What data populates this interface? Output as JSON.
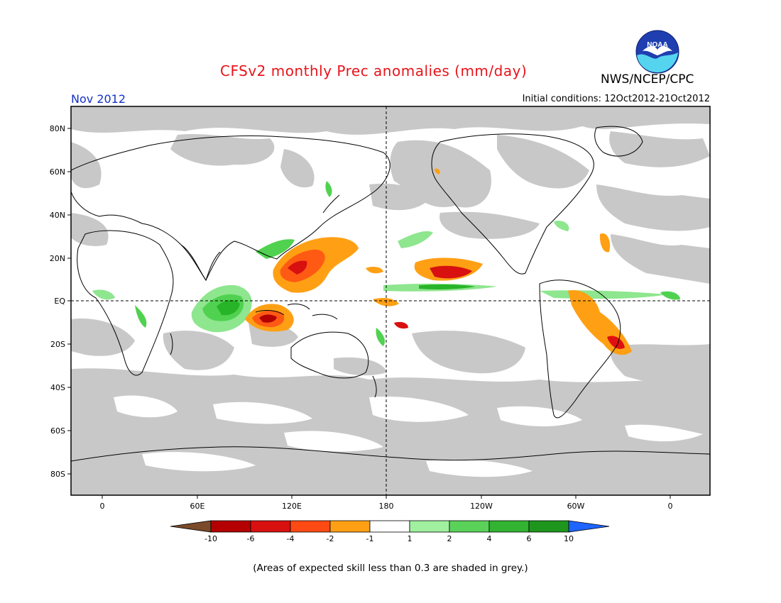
{
  "title": "CFSv2 monthly Prec anomalies (mm/day)",
  "agency": "NWS/NCEP/CPC",
  "logo_text": "NOAA",
  "valid_month": "Nov 2012",
  "initial_conditions": "Initial conditions: 12Oct2012-21Oct2012",
  "footnote": "(Areas of expected skill less than 0.3 are shaded in grey.)",
  "colors": {
    "grey_low_skill": "#c8c8c8",
    "ocean_land_background": "#ffffff",
    "dry": [
      "#7a4a2a",
      "#b40000",
      "#e01010",
      "#ff5a14",
      "#ffa014"
    ],
    "wet": [
      "#8ee68e",
      "#50d250",
      "#28b428",
      "#149614",
      "#1e64ff"
    ]
  },
  "map": {
    "projection": "cylindrical equidistant, centered 180",
    "lat_labels": [
      "80N",
      "60N",
      "40N",
      "20N",
      "EQ",
      "20S",
      "40S",
      "60S",
      "80S"
    ],
    "lon_labels": [
      "0",
      "60E",
      "120E",
      "180",
      "120W",
      "60W",
      "0"
    ],
    "reference_lines": [
      "equator",
      "dateline"
    ]
  },
  "legend": {
    "labels": [
      "-10",
      "-6",
      "-4",
      "-2",
      "-1",
      "1",
      "2",
      "4",
      "6",
      "10"
    ],
    "bins": [
      {
        "color": "#7a4a2a",
        "range": "< -10"
      },
      {
        "color": "#b40000",
        "range": "-10 to -6"
      },
      {
        "color": "#d81010",
        "range": "-6 to -4"
      },
      {
        "color": "#ff4a14",
        "range": "-4 to -2"
      },
      {
        "color": "#ffa014",
        "range": "-2 to -1"
      },
      {
        "color": "#ffffff",
        "range": "-1 to 1"
      },
      {
        "color": "#a0f0a0",
        "range": "1 to 2"
      },
      {
        "color": "#5ad25a",
        "range": "2 to 4"
      },
      {
        "color": "#32b432",
        "range": "4 to 6"
      },
      {
        "color": "#1e961e",
        "range": "6 to 10"
      },
      {
        "color": "#1e64ff",
        "range": "> 10"
      }
    ]
  },
  "anomaly_regions": [
    {
      "label": "Maritime Continent dry",
      "lon": 115,
      "lat": -7,
      "category": "-6"
    },
    {
      "label": "Philippine Sea dry",
      "lon": 130,
      "lat": 15,
      "category": "-4"
    },
    {
      "label": "Central Pacific dry",
      "lon": -150,
      "lat": 12,
      "category": "-4"
    },
    {
      "label": "Eastern Brazil dry",
      "lon": -40,
      "lat": -18,
      "category": "-4"
    },
    {
      "label": "Indian Ocean wet",
      "lon": 80,
      "lat": -3,
      "category": "4"
    },
    {
      "label": "Pacific ITCZ wet",
      "lon": -160,
      "lat": 6,
      "category": "2"
    }
  ]
}
